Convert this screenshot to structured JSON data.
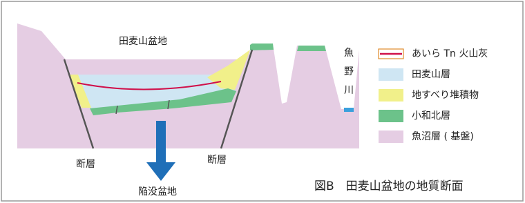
{
  "title": "田麦山盆地",
  "river": [
    "魚",
    "野",
    "川"
  ],
  "faults": [
    "断層",
    "断層"
  ],
  "subsidence": "陥没盆地",
  "caption": "図B　田麦山盆地の地質断面",
  "legend": [
    {
      "label": "あいら Tn 火山灰",
      "color": "#d0104a"
    },
    {
      "label": "田麦山層",
      "color": "#cfe6f3"
    },
    {
      "label": "地すべり堆積物",
      "color": "#f1f08a"
    },
    {
      "label": "小和北層",
      "color": "#6cc28a"
    },
    {
      "label": "魚沼層 ( 基盤)",
      "color": "#e5cde3"
    }
  ]
}
